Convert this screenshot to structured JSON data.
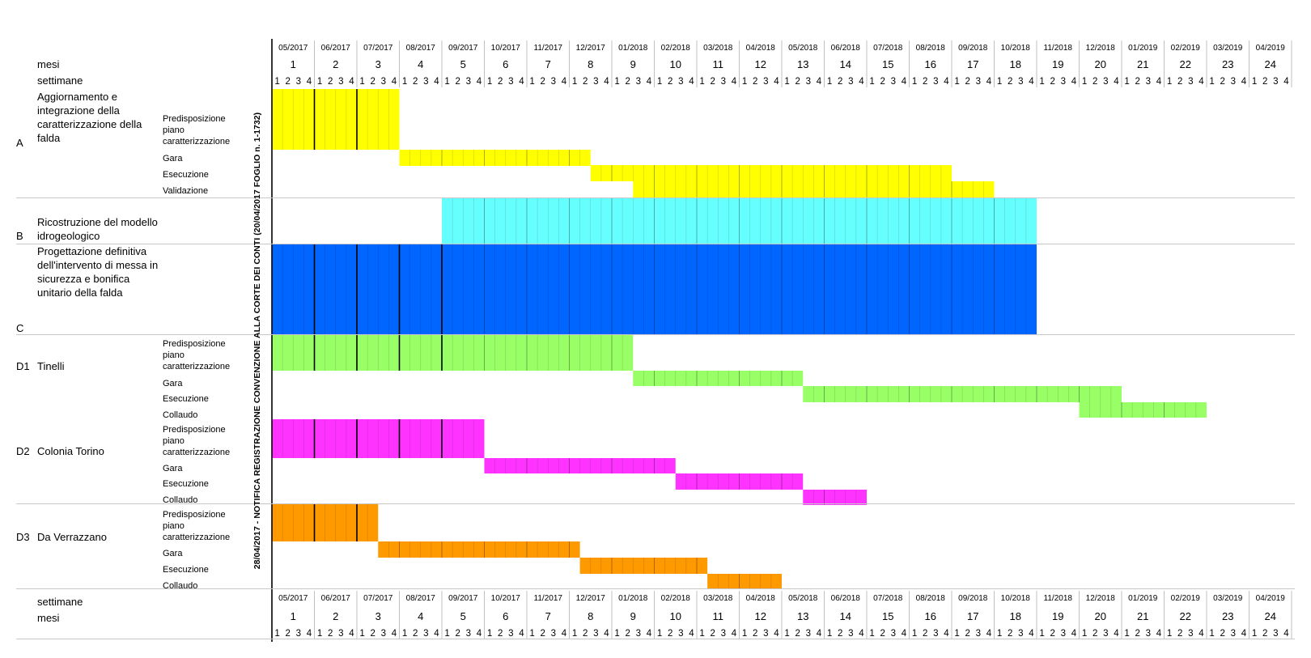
{
  "months": [
    "05/2017",
    "06/2017",
    "07/2017",
    "08/2017",
    "09/2017",
    "10/2017",
    "11/2017",
    "12/2017",
    "01/2018",
    "02/2018",
    "03/2018",
    "04/2018",
    "05/2018",
    "06/2018",
    "07/2018",
    "08/2018",
    "09/2018",
    "10/2018",
    "11/2018",
    "12/2018",
    "01/2019",
    "02/2019",
    "03/2019",
    "04/2019"
  ],
  "month_numbers": [
    "1",
    "2",
    "3",
    "4",
    "5",
    "6",
    "7",
    "8",
    "9",
    "10",
    "11",
    "12",
    "13",
    "14",
    "15",
    "16",
    "17",
    "18",
    "19",
    "20",
    "21",
    "22",
    "23",
    "24"
  ],
  "week_digits": [
    "1",
    "2",
    "3",
    "4"
  ],
  "header_labels": {
    "mesi": "mesi",
    "settimane": "settimane"
  },
  "footer_labels": {
    "settimane": "settimane",
    "mesi": "mesi"
  },
  "vertical_note": "28/04/2017 - NOTIFICA REGISTRAZIONE CONVENZIONE ALLA CORTE DEI CONTI (20/04/2017 FOGLIO n. 1-1732)",
  "groups": [
    {
      "code": "A",
      "name": "Aggiornamento e integrazione della caratterizzazione della falda"
    },
    {
      "code": "B",
      "name": "Ricostruzione del modello idrogeologico"
    },
    {
      "code": "C",
      "name": "Progettazione definitiva dell'intervento di messa in sicurezza e bonifica unitario della falda"
    },
    {
      "code": "D1",
      "name": "Tinelli"
    },
    {
      "code": "D2",
      "name": "Colonia Torino"
    },
    {
      "code": "D3",
      "name": "Da Verrazzano"
    }
  ],
  "subtasks": {
    "A": [
      "Predisposizione piano caratterizzazione",
      "Gara",
      "Esecuzione",
      "Validazione"
    ],
    "D1": [
      "Predisposizione piano caratterizzazione",
      "Gara",
      "Esecuzione",
      "Collaudo"
    ],
    "D2": [
      "Predisposizione piano caratterizzazione",
      "Gara",
      "Esecuzione",
      "Collaudo"
    ],
    "D3": [
      "Predisposizione piano caratterizzazione",
      "Gara",
      "Esecuzione",
      "Collaudo"
    ]
  },
  "chart_data": {
    "type": "gantt",
    "time_unit": "week",
    "weeks_per_month": 4,
    "first_month": "05/2017",
    "last_month": "04/2019",
    "colors": {
      "A": "#ffff00",
      "B": "#66ffff",
      "C": "#0066ff",
      "D1": "#99ff66",
      "D2": "#ff33ff",
      "D3": "#ff9900"
    },
    "tasks": [
      {
        "group": "A",
        "task": "Predisposizione piano caratterizzazione",
        "start_week": 1,
        "end_week": 12
      },
      {
        "group": "A",
        "task": "Gara",
        "start_week": 13,
        "end_week": 30
      },
      {
        "group": "A",
        "task": "Esecuzione",
        "start_week": 31,
        "end_week": 64
      },
      {
        "group": "A",
        "task": "Validazione",
        "start_week": 35,
        "end_week": 68
      },
      {
        "group": "B",
        "task": "Ricostruzione del modello idrogeologico",
        "start_week": 17,
        "end_week": 72
      },
      {
        "group": "C",
        "task": "Progettazione definitiva",
        "start_week": 1,
        "end_week": 72
      },
      {
        "group": "D1",
        "task": "Predisposizione piano caratterizzazione",
        "start_week": 1,
        "end_week": 34
      },
      {
        "group": "D1",
        "task": "Gara",
        "start_week": 35,
        "end_week": 50
      },
      {
        "group": "D1",
        "task": "Esecuzione",
        "start_week": 51,
        "end_week": 80
      },
      {
        "group": "D1",
        "task": "Collaudo",
        "start_week": 77,
        "end_week": 88
      },
      {
        "group": "D2",
        "task": "Predisposizione piano caratterizzazione",
        "start_week": 1,
        "end_week": 20
      },
      {
        "group": "D2",
        "task": "Gara",
        "start_week": 21,
        "end_week": 38
      },
      {
        "group": "D2",
        "task": "Esecuzione",
        "start_week": 39,
        "end_week": 50
      },
      {
        "group": "D2",
        "task": "Collaudo",
        "start_week": 51,
        "end_week": 56
      },
      {
        "group": "D3",
        "task": "Predisposizione piano caratterizzazione",
        "start_week": 1,
        "end_week": 10
      },
      {
        "group": "D3",
        "task": "Gara",
        "start_week": 11,
        "end_week": 29
      },
      {
        "group": "D3",
        "task": "Esecuzione",
        "start_week": 30,
        "end_week": 41
      },
      {
        "group": "D3",
        "task": "Collaudo",
        "start_week": 42,
        "end_week": 48
      }
    ]
  }
}
